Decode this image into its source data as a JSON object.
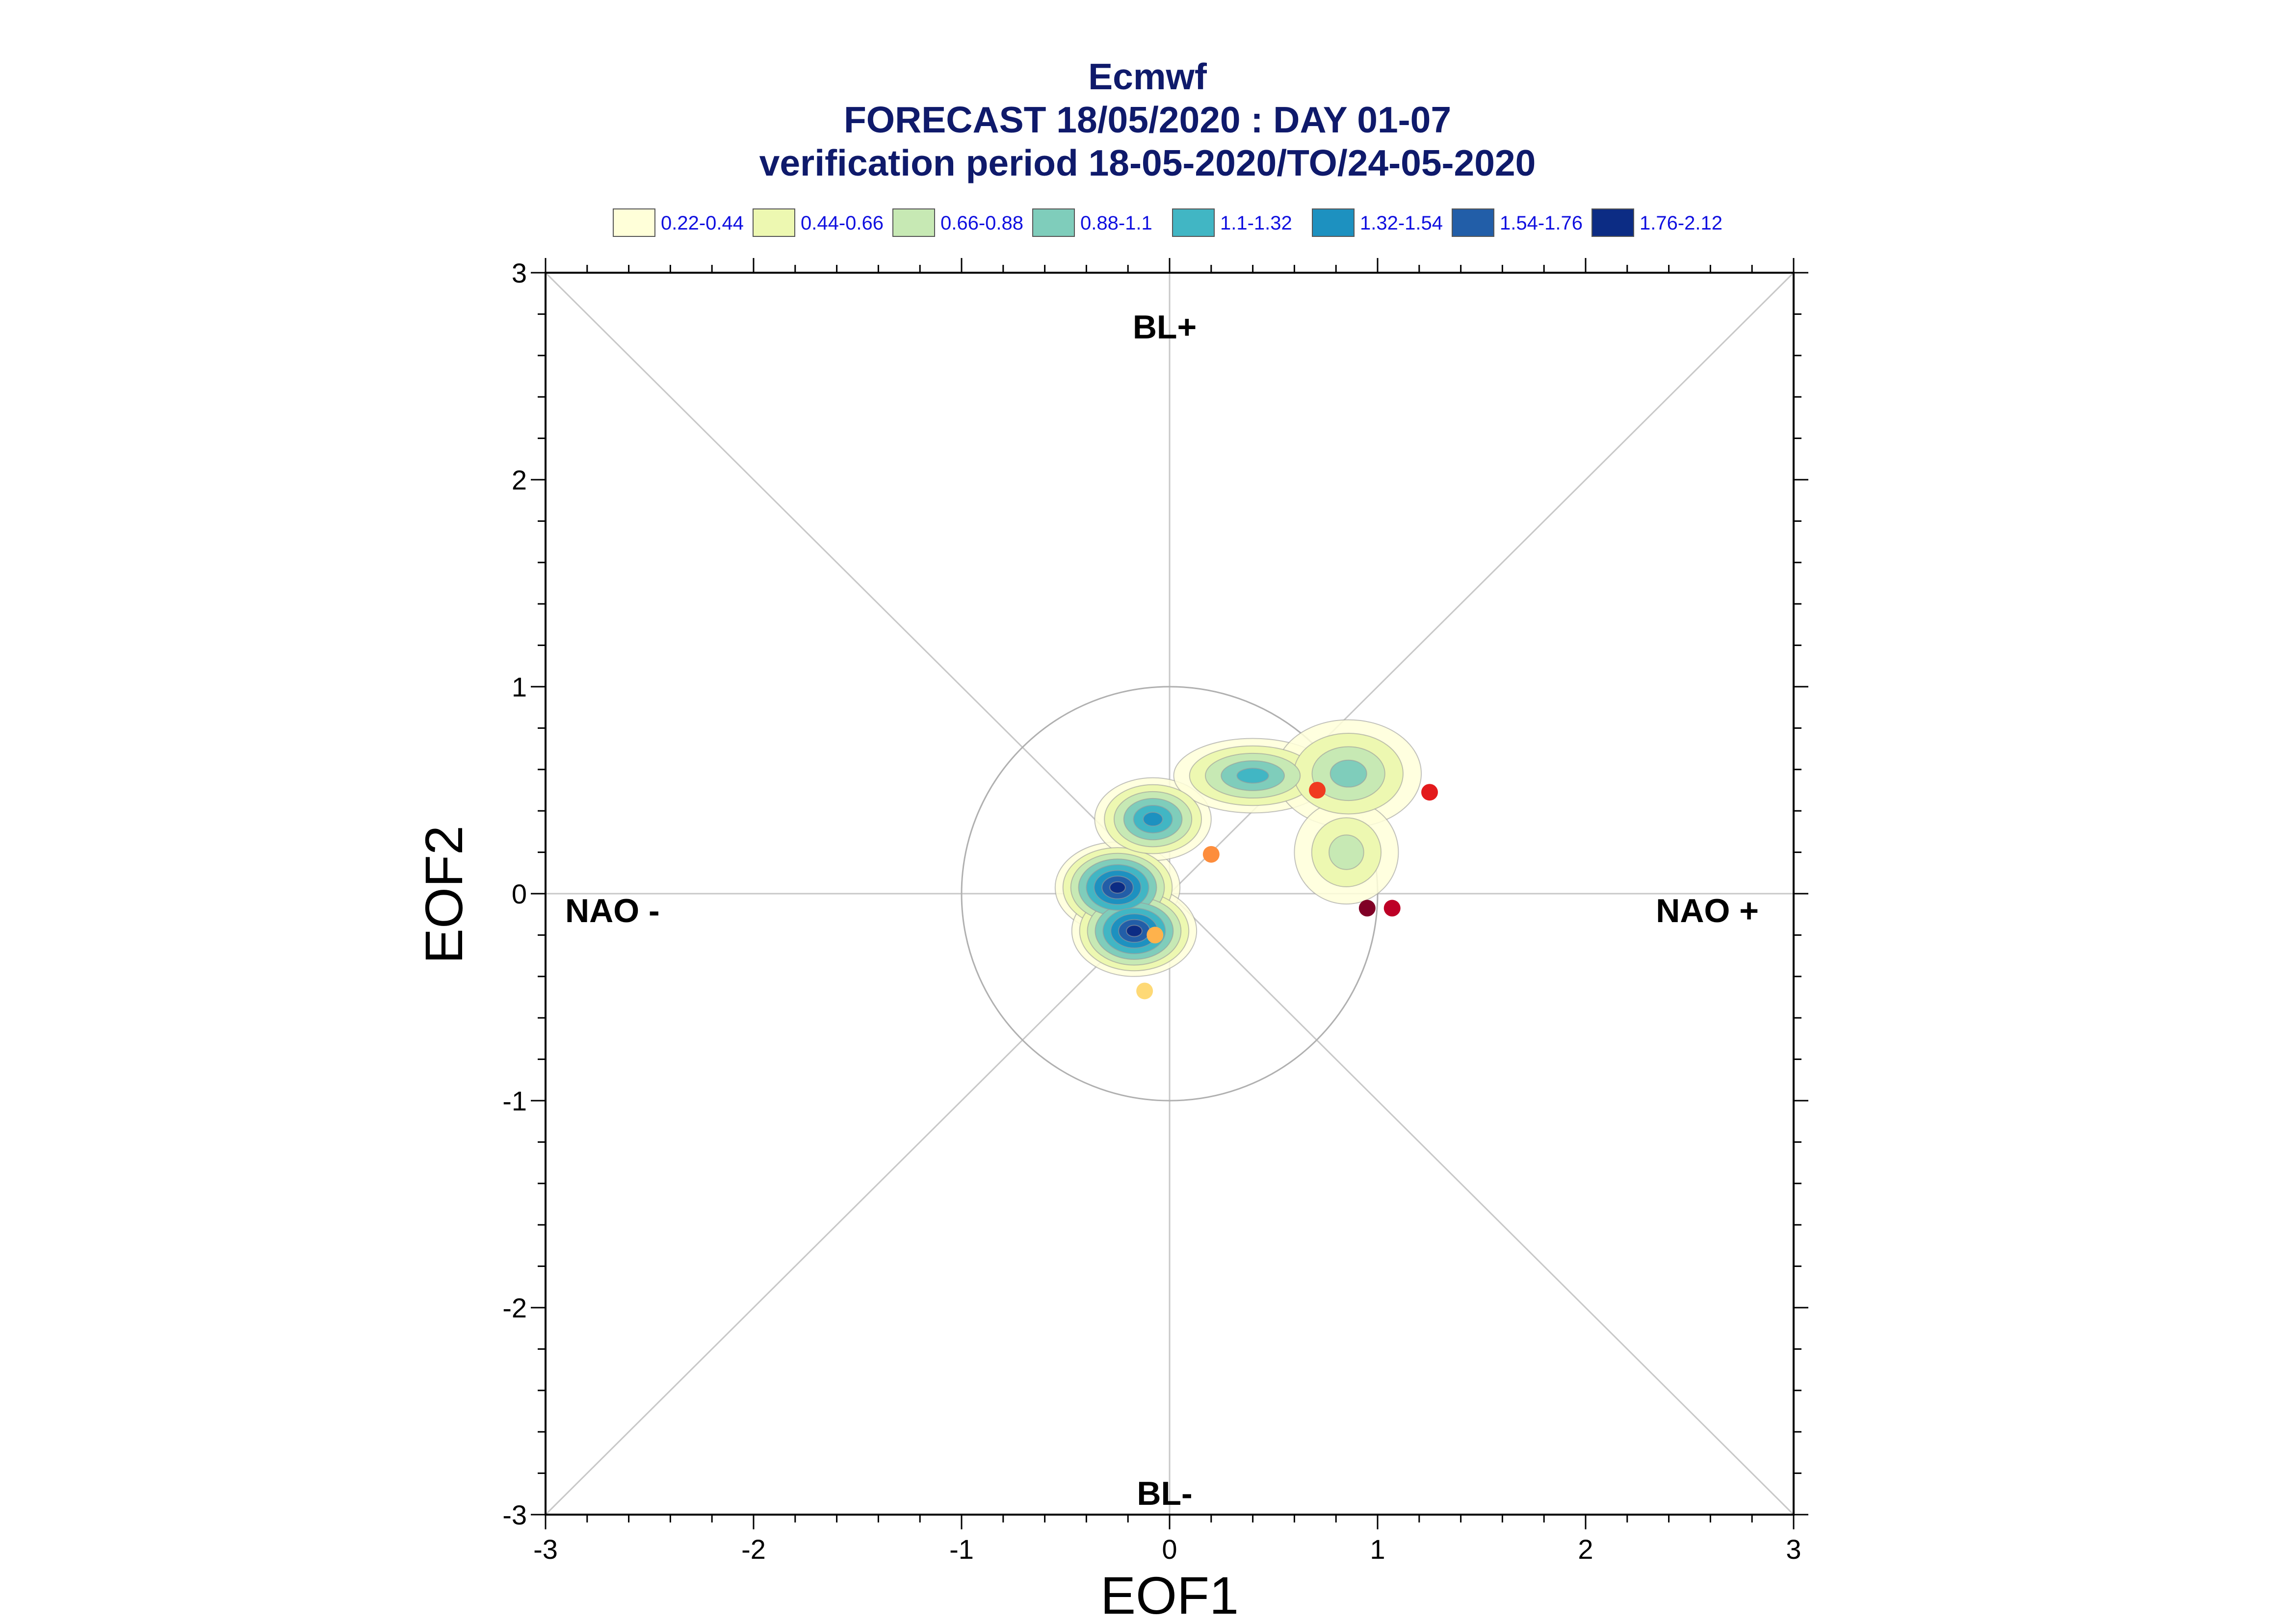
{
  "chart_data": {
    "type": "scatter",
    "title": "Ecmwf",
    "subtitle": "FORECAST 18/05/2020 : DAY 01-07",
    "subtitle2": "verification period 18-05-2020/TO/24-05-2020",
    "xlabel": "EOF1",
    "ylabel": "EOF2",
    "xlim": [
      -3,
      3
    ],
    "ylim": [
      -3,
      3
    ],
    "xticks": [
      "-3",
      "-2",
      "-1",
      "0",
      "1",
      "2",
      "3"
    ],
    "yticks": [
      "3",
      "2",
      "1",
      "0",
      "-1",
      "-2",
      "-3"
    ],
    "regimes": {
      "top": "BL+",
      "bottom": "BL-",
      "left": "NAO -",
      "right": "NAO +"
    },
    "unit_circle_radius": 1,
    "legend": [
      {
        "label": "0.22-0.44",
        "color": "#ffffd9"
      },
      {
        "label": "0.44-0.66",
        "color": "#edf8b1"
      },
      {
        "label": "0.66-0.88",
        "color": "#c7e9b4"
      },
      {
        "label": "0.88-1.1",
        "color": "#7fcdbb"
      },
      {
        "label": "1.1-1.32",
        "color": "#41b6c4"
      },
      {
        "label": "1.32-1.54",
        "color": "#1d91c0"
      },
      {
        "label": "1.54-1.76",
        "color": "#225ea8"
      },
      {
        "label": "1.76-2.12",
        "color": "#0c2c84"
      }
    ],
    "density_blobs": [
      {
        "x": -0.25,
        "y": 0.03,
        "rx": 0.3,
        "ry": 0.22,
        "peak_level": 8
      },
      {
        "x": -0.17,
        "y": -0.18,
        "rx": 0.3,
        "ry": 0.22,
        "peak_level": 8
      },
      {
        "x": -0.08,
        "y": 0.36,
        "rx": 0.28,
        "ry": 0.2,
        "peak_level": 6
      },
      {
        "x": 0.4,
        "y": 0.57,
        "rx": 0.38,
        "ry": 0.18,
        "peak_level": 5
      },
      {
        "x": 0.86,
        "y": 0.58,
        "rx": 0.35,
        "ry": 0.26,
        "peak_level": 4
      },
      {
        "x": 0.85,
        "y": 0.2,
        "rx": 0.25,
        "ry": 0.25,
        "peak_level": 3
      }
    ],
    "points": [
      {
        "x": -0.12,
        "y": -0.47,
        "color": "#fed976"
      },
      {
        "x": -0.07,
        "y": -0.2,
        "color": "#feb24c"
      },
      {
        "x": 0.2,
        "y": 0.19,
        "color": "#fd8d3c"
      },
      {
        "x": 0.71,
        "y": 0.5,
        "color": "#f03b20"
      },
      {
        "x": 1.25,
        "y": 0.49,
        "color": "#e31a1c"
      },
      {
        "x": 0.95,
        "y": -0.07,
        "color": "#800026"
      },
      {
        "x": 1.07,
        "y": -0.07,
        "color": "#bd0026"
      }
    ]
  }
}
